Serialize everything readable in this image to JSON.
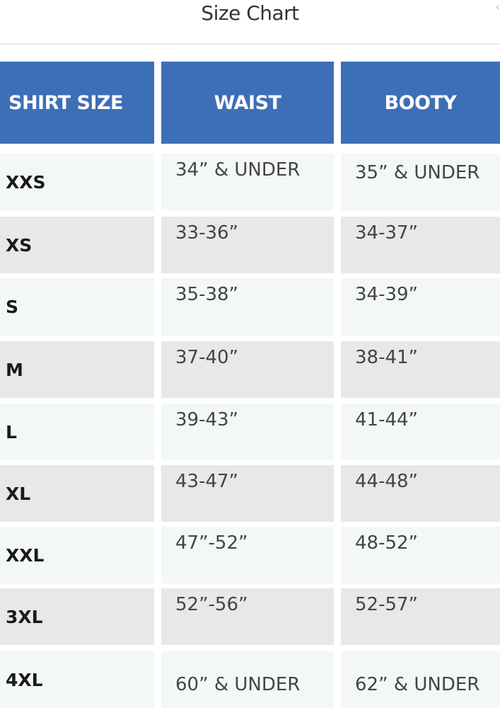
{
  "title": "Size Chart",
  "headers": [
    "SHIRT SIZE",
    "WAIST",
    "BOOTY"
  ],
  "rows": [
    {
      "size": "XXS",
      "waist": "34” & UNDER",
      "booty": "35” & UNDER"
    },
    {
      "size": "XS",
      "waist": "33-36”",
      "booty": "34-37”"
    },
    {
      "size": "S",
      "waist": "35-38”",
      "booty": "34-39”"
    },
    {
      "size": "M",
      "waist": "37-40”",
      "booty": "38-41”"
    },
    {
      "size": "L",
      "waist": "39-43”",
      "booty": "41-44”"
    },
    {
      "size": "XL",
      "waist": "43-47”",
      "booty": "44-48”"
    },
    {
      "size": "XXL",
      "waist": "47”-52”",
      "booty": "48-52”"
    },
    {
      "size": "3XL",
      "waist": "52”-56”",
      "booty": "52-57”"
    },
    {
      "size": "4XL",
      "waist": "60” & UNDER",
      "booty": "62” & UNDER"
    }
  ],
  "colors": {
    "header": "#3d6fb6",
    "row_light": "#f4f7f7",
    "row_dark": "#e8e8e8"
  }
}
